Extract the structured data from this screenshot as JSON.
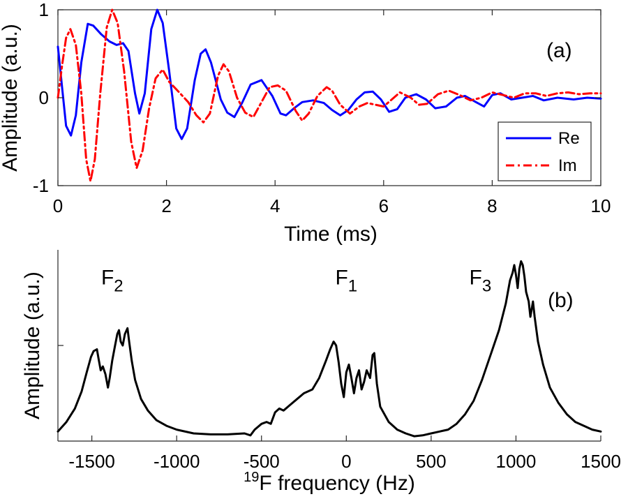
{
  "chart_data": [
    {
      "type": "line",
      "panel_label": "(a)",
      "xlabel": "Time (ms)",
      "ylabel": "Amplitude (a.u.)",
      "xlim": [
        0,
        10
      ],
      "ylim": [
        -1,
        1
      ],
      "x_ticks": [
        0,
        2,
        4,
        6,
        8,
        10
      ],
      "x_tick_labels": [
        "0",
        "2",
        "4",
        "6",
        "8",
        "10"
      ],
      "y_ticks": [
        -1,
        0,
        1
      ],
      "y_tick_labels": [
        "-1",
        "0",
        "1"
      ],
      "grid": false,
      "legend_position": "right",
      "series": [
        {
          "name": "Re",
          "color": "#0000ff",
          "dash": "solid",
          "points": [
            [
              0.0,
              0.58
            ],
            [
              0.08,
              0.1
            ],
            [
              0.15,
              -0.32
            ],
            [
              0.24,
              -0.43
            ],
            [
              0.33,
              -0.2
            ],
            [
              0.43,
              0.4
            ],
            [
              0.55,
              0.84
            ],
            [
              0.65,
              0.82
            ],
            [
              0.8,
              0.72
            ],
            [
              0.95,
              0.64
            ],
            [
              1.08,
              0.6
            ],
            [
              1.2,
              0.62
            ],
            [
              1.3,
              0.53
            ],
            [
              1.42,
              0.05
            ],
            [
              1.5,
              -0.18
            ],
            [
              1.6,
              0.05
            ],
            [
              1.72,
              0.78
            ],
            [
              1.83,
              1.0
            ],
            [
              1.93,
              0.85
            ],
            [
              2.05,
              0.3
            ],
            [
              2.18,
              -0.35
            ],
            [
              2.28,
              -0.47
            ],
            [
              2.38,
              -0.35
            ],
            [
              2.52,
              0.2
            ],
            [
              2.63,
              0.5
            ],
            [
              2.72,
              0.55
            ],
            [
              2.82,
              0.4
            ],
            [
              3.0,
              -0.02
            ],
            [
              3.12,
              -0.17
            ],
            [
              3.25,
              -0.22
            ],
            [
              3.4,
              -0.05
            ],
            [
              3.55,
              0.15
            ],
            [
              3.75,
              0.2
            ],
            [
              3.95,
              0.02
            ],
            [
              4.1,
              -0.18
            ],
            [
              4.2,
              -0.2
            ],
            [
              4.35,
              -0.12
            ],
            [
              4.5,
              -0.05
            ],
            [
              4.7,
              -0.03
            ],
            [
              4.9,
              -0.06
            ],
            [
              5.05,
              -0.14
            ],
            [
              5.2,
              -0.2
            ],
            [
              5.35,
              -0.14
            ],
            [
              5.5,
              -0.02
            ],
            [
              5.65,
              0.06
            ],
            [
              5.8,
              0.07
            ],
            [
              5.95,
              -0.02
            ],
            [
              6.1,
              -0.16
            ],
            [
              6.25,
              -0.13
            ],
            [
              6.4,
              0.0
            ],
            [
              6.6,
              0.04
            ],
            [
              6.78,
              -0.02
            ],
            [
              6.95,
              -0.12
            ],
            [
              7.15,
              -0.1
            ],
            [
              7.35,
              0.0
            ],
            [
              7.5,
              0.02
            ],
            [
              7.7,
              -0.05
            ],
            [
              7.85,
              -0.1
            ],
            [
              8.0,
              0.03
            ],
            [
              8.15,
              0.05
            ],
            [
              8.35,
              -0.02
            ],
            [
              8.55,
              0.0
            ],
            [
              8.75,
              0.02
            ],
            [
              8.95,
              -0.03
            ],
            [
              9.2,
              0.0
            ],
            [
              9.5,
              -0.02
            ],
            [
              9.75,
              0.0
            ],
            [
              10.0,
              -0.01
            ]
          ]
        },
        {
          "name": "Im",
          "color": "#ff0000",
          "dash": "dash-dot",
          "points": [
            [
              0.0,
              0.0
            ],
            [
              0.08,
              0.38
            ],
            [
              0.15,
              0.68
            ],
            [
              0.23,
              0.78
            ],
            [
              0.33,
              0.6
            ],
            [
              0.43,
              0.05
            ],
            [
              0.52,
              -0.7
            ],
            [
              0.6,
              -0.95
            ],
            [
              0.68,
              -0.7
            ],
            [
              0.78,
              0.05
            ],
            [
              0.9,
              0.8
            ],
            [
              1.0,
              1.0
            ],
            [
              1.1,
              0.85
            ],
            [
              1.22,
              0.3
            ],
            [
              1.35,
              -0.5
            ],
            [
              1.45,
              -0.8
            ],
            [
              1.56,
              -0.6
            ],
            [
              1.68,
              -0.12
            ],
            [
              1.8,
              0.22
            ],
            [
              1.93,
              0.32
            ],
            [
              2.05,
              0.18
            ],
            [
              2.25,
              0.05
            ],
            [
              2.4,
              -0.05
            ],
            [
              2.55,
              -0.2
            ],
            [
              2.68,
              -0.28
            ],
            [
              2.8,
              -0.18
            ],
            [
              2.95,
              0.25
            ],
            [
              3.05,
              0.38
            ],
            [
              3.15,
              0.3
            ],
            [
              3.3,
              0.0
            ],
            [
              3.45,
              -0.17
            ],
            [
              3.6,
              -0.22
            ],
            [
              3.75,
              -0.05
            ],
            [
              3.9,
              0.12
            ],
            [
              4.05,
              0.14
            ],
            [
              4.2,
              0.08
            ],
            [
              4.38,
              -0.15
            ],
            [
              4.5,
              -0.26
            ],
            [
              4.62,
              -0.18
            ],
            [
              4.78,
              0.02
            ],
            [
              4.95,
              0.12
            ],
            [
              5.05,
              0.08
            ],
            [
              5.2,
              -0.08
            ],
            [
              5.38,
              -0.18
            ],
            [
              5.55,
              -0.1
            ],
            [
              5.7,
              -0.06
            ],
            [
              5.85,
              -0.08
            ],
            [
              6.0,
              -0.1
            ],
            [
              6.15,
              -0.02
            ],
            [
              6.3,
              0.06
            ],
            [
              6.5,
              0.0
            ],
            [
              6.65,
              -0.08
            ],
            [
              6.8,
              -0.07
            ],
            [
              7.0,
              0.04
            ],
            [
              7.2,
              0.08
            ],
            [
              7.4,
              0.03
            ],
            [
              7.6,
              -0.03
            ],
            [
              7.8,
              0.0
            ],
            [
              8.0,
              0.06
            ],
            [
              8.2,
              0.03
            ],
            [
              8.4,
              0.0
            ],
            [
              8.6,
              0.05
            ],
            [
              8.8,
              0.05
            ],
            [
              9.0,
              0.02
            ],
            [
              9.2,
              0.05
            ],
            [
              9.4,
              0.06
            ],
            [
              9.6,
              0.04
            ],
            [
              9.8,
              0.05
            ],
            [
              10.0,
              0.05
            ]
          ]
        }
      ]
    },
    {
      "type": "line",
      "panel_label": "(b)",
      "xlabel_superscript": "19",
      "xlabel_main": "F frequency (Hz)",
      "ylabel": "Amplitude (a.u.)",
      "xlim": [
        -1700,
        1500
      ],
      "ylim": [
        0,
        1
      ],
      "x_ticks": [
        -1500,
        -1000,
        -500,
        0,
        500,
        1000,
        1500
      ],
      "x_tick_labels": [
        "-1500",
        "-1000",
        "-500",
        "0",
        "500",
        "1000",
        "1500"
      ],
      "y_tick_marks": [
        0.5
      ],
      "grid": false,
      "annotations": [
        {
          "base": "F",
          "sub": "2",
          "x": -1380,
          "y": 0.82
        },
        {
          "base": "F",
          "sub": "1",
          "x": 0,
          "y": 0.82
        },
        {
          "base": "F",
          "sub": "3",
          "x": 790,
          "y": 0.82
        }
      ],
      "series": [
        {
          "name": "",
          "color": "#000000",
          "points": [
            [
              -1700,
              0.05
            ],
            [
              -1650,
              0.1
            ],
            [
              -1600,
              0.17
            ],
            [
              -1560,
              0.26
            ],
            [
              -1530,
              0.36
            ],
            [
              -1505,
              0.44
            ],
            [
              -1490,
              0.47
            ],
            [
              -1470,
              0.48
            ],
            [
              -1460,
              0.43
            ],
            [
              -1448,
              0.37
            ],
            [
              -1435,
              0.39
            ],
            [
              -1420,
              0.35
            ],
            [
              -1405,
              0.28
            ],
            [
              -1395,
              0.33
            ],
            [
              -1380,
              0.42
            ],
            [
              -1365,
              0.49
            ],
            [
              -1350,
              0.56
            ],
            [
              -1340,
              0.58
            ],
            [
              -1330,
              0.52
            ],
            [
              -1318,
              0.5
            ],
            [
              -1305,
              0.56
            ],
            [
              -1290,
              0.59
            ],
            [
              -1280,
              0.52
            ],
            [
              -1265,
              0.42
            ],
            [
              -1245,
              0.32
            ],
            [
              -1210,
              0.22
            ],
            [
              -1170,
              0.16
            ],
            [
              -1120,
              0.11
            ],
            [
              -1060,
              0.08
            ],
            [
              -1000,
              0.06
            ],
            [
              -900,
              0.04
            ],
            [
              -800,
              0.035
            ],
            [
              -700,
              0.035
            ],
            [
              -600,
              0.04
            ],
            [
              -565,
              0.03
            ],
            [
              -540,
              0.06
            ],
            [
              -500,
              0.09
            ],
            [
              -470,
              0.1
            ],
            [
              -445,
              0.09
            ],
            [
              -420,
              0.15
            ],
            [
              -395,
              0.17
            ],
            [
              -370,
              0.16
            ],
            [
              -330,
              0.19
            ],
            [
              -290,
              0.22
            ],
            [
              -250,
              0.25
            ],
            [
              -200,
              0.27
            ],
            [
              -160,
              0.33
            ],
            [
              -120,
              0.42
            ],
            [
              -95,
              0.48
            ],
            [
              -75,
              0.52
            ],
            [
              -60,
              0.5
            ],
            [
              -45,
              0.41
            ],
            [
              -30,
              0.3
            ],
            [
              -15,
              0.23
            ],
            [
              0,
              0.36
            ],
            [
              15,
              0.4
            ],
            [
              30,
              0.33
            ],
            [
              45,
              0.25
            ],
            [
              60,
              0.33
            ],
            [
              75,
              0.37
            ],
            [
              90,
              0.27
            ],
            [
              105,
              0.31
            ],
            [
              120,
              0.37
            ],
            [
              140,
              0.33
            ],
            [
              155,
              0.45
            ],
            [
              165,
              0.46
            ],
            [
              180,
              0.3
            ],
            [
              200,
              0.18
            ],
            [
              250,
              0.1
            ],
            [
              300,
              0.06
            ],
            [
              350,
              0.04
            ],
            [
              400,
              0.025
            ],
            [
              450,
              0.03
            ],
            [
              500,
              0.04
            ],
            [
              550,
              0.05
            ],
            [
              600,
              0.06
            ],
            [
              650,
              0.09
            ],
            [
              700,
              0.14
            ],
            [
              750,
              0.21
            ],
            [
              800,
              0.32
            ],
            [
              850,
              0.45
            ],
            [
              900,
              0.58
            ],
            [
              940,
              0.72
            ],
            [
              965,
              0.84
            ],
            [
              980,
              0.88
            ],
            [
              990,
              0.92
            ],
            [
              1000,
              0.87
            ],
            [
              1010,
              0.8
            ],
            [
              1020,
              0.9
            ],
            [
              1030,
              0.94
            ],
            [
              1040,
              0.92
            ],
            [
              1050,
              0.86
            ],
            [
              1060,
              0.78
            ],
            [
              1075,
              0.73
            ],
            [
              1085,
              0.65
            ],
            [
              1100,
              0.73
            ],
            [
              1110,
              0.65
            ],
            [
              1130,
              0.52
            ],
            [
              1160,
              0.4
            ],
            [
              1200,
              0.28
            ],
            [
              1250,
              0.2
            ],
            [
              1300,
              0.14
            ],
            [
              1350,
              0.1
            ],
            [
              1400,
              0.08
            ],
            [
              1450,
              0.06
            ],
            [
              1500,
              0.05
            ]
          ]
        }
      ]
    }
  ]
}
